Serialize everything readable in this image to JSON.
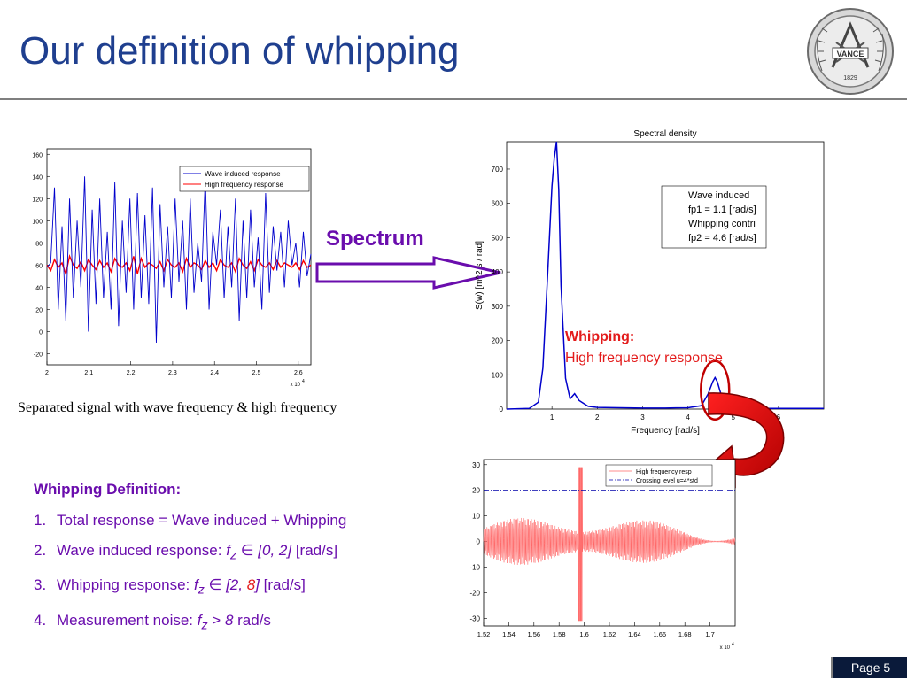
{
  "slide": {
    "title": "Our definition of whipping",
    "page_label": "Page 5",
    "logo_icon": "university-seal-icon"
  },
  "annotations": {
    "spectrum": "Spectrum",
    "whipping_title": "Whipping:",
    "whipping_sub": "High frequency response",
    "caption": "Separated signal with wave frequency & high frequency"
  },
  "definition": {
    "heading": "Whipping Definition:",
    "items": [
      {
        "num": "1.",
        "text": "Total response = Wave induced + Whipping"
      },
      {
        "num": "2.",
        "prefix": "Wave induced response: ",
        "var": "f",
        "sub": "z",
        "sym": " ∈ ",
        "range": "[0, 2]",
        "unit": " [rad/s]"
      },
      {
        "num": "3.",
        "prefix": "Whipping response: ",
        "var": "f",
        "sub": "z",
        "sym": " ∈ ",
        "range_a": "[2, ",
        "range_b": "8",
        "range_c": "]",
        "unit": " [rad/s]"
      },
      {
        "num": "4.",
        "prefix": "Measurement noise: ",
        "var": "f",
        "sub": "z",
        "sym": " > ",
        "val": "8",
        "unit": " rad/s"
      }
    ]
  },
  "colors": {
    "title": "#1f3f8f",
    "purple": "#6a0dad",
    "red": "#e31b1b",
    "blue_series": "#0000cc",
    "red_series": "#ff0000"
  },
  "chart_data": [
    {
      "type": "line",
      "title": "",
      "xlabel": "",
      "ylabel": "",
      "x_multiplier": "x 10",
      "x_multiplier_exp": "4",
      "xlim": [
        2.0,
        2.63
      ],
      "ylim": [
        -30,
        165
      ],
      "xticks": [
        "2",
        "2.1",
        "2.2",
        "2.3",
        "2.4",
        "2.5",
        "2.6"
      ],
      "xtick_values": [
        2.0,
        2.1,
        2.2,
        2.3,
        2.4,
        2.5,
        2.6
      ],
      "yticks": [
        "160",
        "140",
        "120",
        "100",
        "80",
        "60",
        "40",
        "20",
        "0",
        "-20"
      ],
      "ytick_values": [
        160,
        140,
        120,
        100,
        80,
        60,
        40,
        20,
        0,
        -20
      ],
      "legend": [
        "Wave induced response",
        "High frequency response"
      ],
      "legend_position": "top-right",
      "series": [
        {
          "name": "Wave induced response",
          "color": "#0000cc",
          "values": [
            58,
            62,
            130,
            20,
            95,
            10,
            120,
            30,
            100,
            40,
            140,
            0,
            110,
            25,
            120,
            30,
            90,
            20,
            135,
            5,
            100,
            35,
            120,
            20,
            125,
            30,
            105,
            25,
            130,
            -10,
            115,
            40,
            95,
            30,
            120,
            45,
            100,
            20,
            120,
            35,
            80,
            45,
            140,
            20,
            90,
            60,
            110,
            30,
            95,
            40,
            120,
            10,
            100,
            30,
            110,
            40,
            85,
            20,
            125,
            35,
            95,
            55,
            90,
            40,
            100,
            60,
            80,
            40,
            90,
            50,
            70
          ]
        },
        {
          "name": "High frequency response",
          "color": "#ff0000",
          "values": [
            60,
            55,
            65,
            58,
            62,
            52,
            68,
            60,
            57,
            63,
            55,
            65,
            60,
            56,
            64,
            58,
            62,
            54,
            66,
            60,
            58,
            62,
            55,
            68,
            52,
            66,
            58,
            62,
            60,
            57,
            63,
            55,
            65,
            60,
            58,
            62,
            54,
            66,
            58,
            62,
            60,
            56,
            64,
            58,
            62,
            55,
            65,
            60,
            58,
            62,
            54,
            66,
            60,
            57,
            63,
            55,
            65,
            60,
            58,
            62,
            56,
            64,
            58,
            62,
            60,
            58,
            62,
            56,
            64,
            58,
            60
          ]
        }
      ]
    },
    {
      "type": "line",
      "title": "Spectral density",
      "xlabel": "Frequency [rad/s]",
      "ylabel": "S(w) [m^2 s / rad]",
      "xlim": [
        0,
        7
      ],
      "ylim": [
        0,
        780
      ],
      "xticks": [
        "1",
        "2",
        "3",
        "4",
        "5",
        "6"
      ],
      "xtick_values": [
        1,
        2,
        3,
        4,
        5,
        6
      ],
      "yticks": [
        "700",
        "600",
        "500",
        "400",
        "300",
        "200",
        "100",
        "0"
      ],
      "ytick_values": [
        700,
        600,
        500,
        400,
        300,
        200,
        100,
        0
      ],
      "legend": [
        "Wave induced",
        "fp1 = 1.1 [rad/s]",
        "Whipping contri",
        "fp2 = 4.6 [rad/s]"
      ],
      "legend_position": "top-right",
      "series": [
        {
          "name": "",
          "color": "#0000cc",
          "x": [
            0,
            0.5,
            0.7,
            0.8,
            0.9,
            1.0,
            1.05,
            1.1,
            1.15,
            1.2,
            1.3,
            1.4,
            1.5,
            1.6,
            1.8,
            2.0,
            2.5,
            3.0,
            3.5,
            4.0,
            4.3,
            4.45,
            4.55,
            4.6,
            4.65,
            4.75,
            4.9,
            5.2,
            6.0,
            7.0
          ],
          "values": [
            0,
            2,
            20,
            120,
            380,
            650,
            730,
            780,
            640,
            360,
            90,
            30,
            45,
            25,
            8,
            5,
            4,
            3,
            3,
            4,
            10,
            45,
            80,
            92,
            80,
            35,
            6,
            2,
            2,
            2
          ]
        }
      ]
    },
    {
      "type": "line",
      "title": "",
      "xlabel": "",
      "ylabel": "",
      "x_multiplier": "x 10",
      "x_multiplier_exp": "4",
      "xlim": [
        1.52,
        1.72
      ],
      "ylim": [
        -33,
        32
      ],
      "xticks": [
        "1.52",
        "1.54",
        "1.56",
        "1.58",
        "1.6",
        "1.62",
        "1.64",
        "1.66",
        "1.68",
        "1.7"
      ],
      "xtick_values": [
        1.52,
        1.54,
        1.56,
        1.58,
        1.6,
        1.62,
        1.64,
        1.66,
        1.68,
        1.7
      ],
      "yticks": [
        "30",
        "20",
        "10",
        "0",
        "-10",
        "-20",
        "-30"
      ],
      "ytick_values": [
        30,
        20,
        10,
        0,
        -10,
        -20,
        -30
      ],
      "legend": [
        "High frequency resp",
        "Crossing level u=4*std"
      ],
      "legend_position": "top-right",
      "series": [
        {
          "name": "High frequency resp",
          "color": "#ff6666"
        },
        {
          "name": "Crossing level u=4*std",
          "color": "#0000aa",
          "values": [
            20
          ]
        }
      ]
    }
  ]
}
